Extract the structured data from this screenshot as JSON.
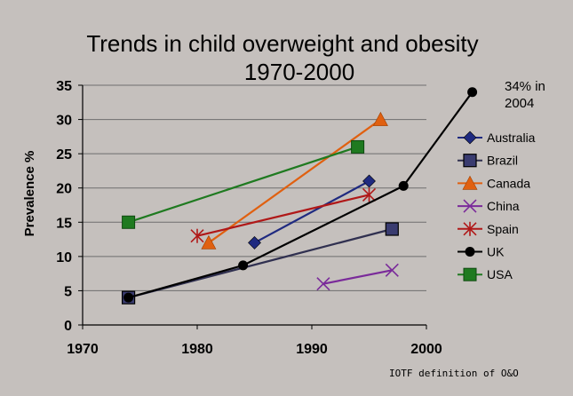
{
  "chart_data": {
    "type": "line",
    "title_line1": "Trends in child overweight and obesity",
    "title_line2": "1970-2000",
    "xlabel": "",
    "ylabel": "Prevalence %",
    "xlim": [
      1970,
      2000
    ],
    "ylim": [
      0,
      35
    ],
    "x_ticks": [
      1970,
      1980,
      1990,
      2000
    ],
    "y_ticks": [
      0,
      5,
      10,
      15,
      20,
      25,
      30,
      35
    ],
    "grid": "horizontal",
    "legend_position": "right",
    "note": "IOTF definition of O&O",
    "annotation": {
      "line1": "34% in",
      "line2": "2004"
    },
    "series": [
      {
        "name": "Australia",
        "color": "#1f2a80",
        "marker": "diamond",
        "points": [
          [
            1985,
            12
          ],
          [
            1995,
            21
          ]
        ]
      },
      {
        "name": "Brazil",
        "color": "#303050",
        "marker": "square",
        "points": [
          [
            1974,
            4
          ],
          [
            1997,
            14
          ]
        ]
      },
      {
        "name": "Canada",
        "color": "#e06010",
        "marker": "triangle",
        "points": [
          [
            1981,
            12
          ],
          [
            1996,
            30
          ]
        ]
      },
      {
        "name": "China",
        "color": "#7a2a9a",
        "marker": "x",
        "points": [
          [
            1991,
            6
          ],
          [
            1997,
            8
          ]
        ]
      },
      {
        "name": "Spain",
        "color": "#b01818",
        "marker": "star",
        "points": [
          [
            1980,
            13
          ],
          [
            1995,
            19
          ]
        ]
      },
      {
        "name": "UK",
        "color": "#000000",
        "marker": "circle",
        "points": [
          [
            1974,
            4
          ],
          [
            1984,
            8.7
          ],
          [
            1998,
            20.3
          ],
          [
            2004,
            34
          ]
        ]
      },
      {
        "name": "USA",
        "color": "#1f7a20",
        "marker": "square-filled",
        "points": [
          [
            1974,
            15
          ],
          [
            1994,
            26
          ]
        ]
      }
    ]
  }
}
